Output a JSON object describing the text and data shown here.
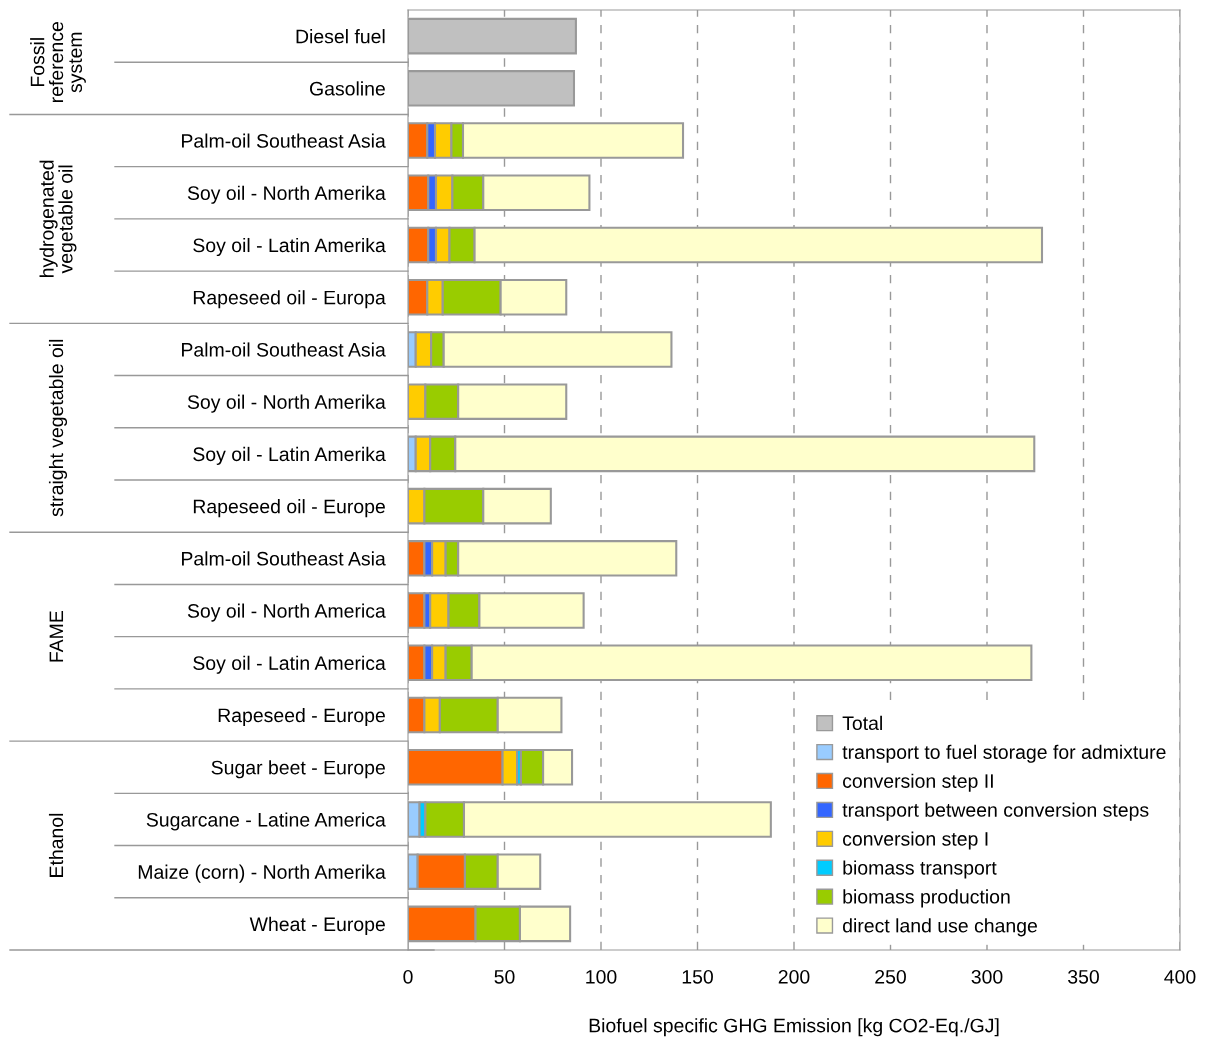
{
  "chart_data": {
    "type": "bar",
    "orientation": "horizontal",
    "stacked": true,
    "xlabel": "Biofuel specific GHG Emission [kg CO2-Eq./GJ]",
    "categories": [
      "Diesel fuel",
      "Gasoline",
      "Palm-oil Southeast Asia",
      "Soy oil - North Amerika",
      "Soy oil - Latin Amerika",
      "Rapeseed oil - Europa",
      "Palm-oil Southeast Asia",
      "Soy oil - North Amerika",
      "Soy oil - Latin Amerika",
      "Rapeseed oil - Europe",
      "Palm-oil Southeast Asia",
      "Soy oil - North America",
      "Soy oil - Latin America",
      "Rapeseed - Europe",
      "Sugar beet - Europe",
      "Sugarcane - Latine America",
      "Maize (corn) - North Amerika",
      "Wheat - Europe"
    ],
    "annotations": [
      "Fossil\nreference\nsystem",
      "hydrogenated\nvegetable oil",
      "straight vegetable oil",
      "FAME",
      "Ethanol"
    ],
    "series": [
      {
        "name": "Total",
        "color": "#c0c0c0",
        "values": [
          87,
          86,
          null,
          null,
          null,
          null,
          null,
          null,
          null,
          null,
          null,
          null,
          null,
          null,
          null,
          null,
          null,
          null
        ]
      },
      {
        "name": "transport to fuel storage for admixture",
        "color": "#99ccff",
        "values": [
          null,
          null,
          null,
          null,
          null,
          null,
          4,
          null,
          4,
          null,
          null,
          null,
          null,
          null,
          null,
          6,
          5,
          null
        ]
      },
      {
        "name": "conversion step II",
        "color": "#ff6600",
        "values": [
          null,
          null,
          10,
          10.5,
          10.5,
          10,
          null,
          null,
          null,
          null,
          8.5,
          8.5,
          8.5,
          8.5,
          49,
          null,
          24.5,
          35
        ]
      },
      {
        "name": "transport between conversion steps",
        "color": "#3366ff",
        "values": [
          null,
          null,
          4,
          4,
          4,
          null,
          null,
          null,
          null,
          null,
          4,
          3,
          4,
          null,
          null,
          null,
          null,
          null
        ]
      },
      {
        "name": "conversion step I",
        "color": "#ffcc00",
        "values": [
          null,
          null,
          8.5,
          8.5,
          7,
          8,
          8,
          9,
          7.5,
          8.5,
          7,
          9.5,
          7,
          8,
          7.5,
          null,
          null,
          null
        ]
      },
      {
        "name": "biomass transport",
        "color": "#00ccff",
        "values": [
          null,
          null,
          null,
          null,
          null,
          null,
          null,
          null,
          null,
          null,
          null,
          null,
          null,
          null,
          2,
          3,
          null,
          null
        ]
      },
      {
        "name": "biomass production",
        "color": "#99cc00",
        "values": [
          null,
          null,
          6,
          16,
          13,
          30,
          6.5,
          17,
          13,
          30.5,
          6.5,
          16,
          13.5,
          30,
          11.5,
          20,
          17,
          23
        ]
      },
      {
        "name": "direct land use change",
        "color": "#ffffcc",
        "values": [
          null,
          null,
          114,
          55,
          294,
          34,
          118,
          56,
          300,
          35,
          113,
          54,
          290,
          33,
          15,
          159,
          22,
          26
        ]
      }
    ],
    "xlim": [
      0,
      400
    ],
    "xticks": [
      0,
      50,
      100,
      150,
      200,
      250,
      300,
      350,
      400
    ],
    "grid": "x",
    "legend": "bottom right"
  }
}
